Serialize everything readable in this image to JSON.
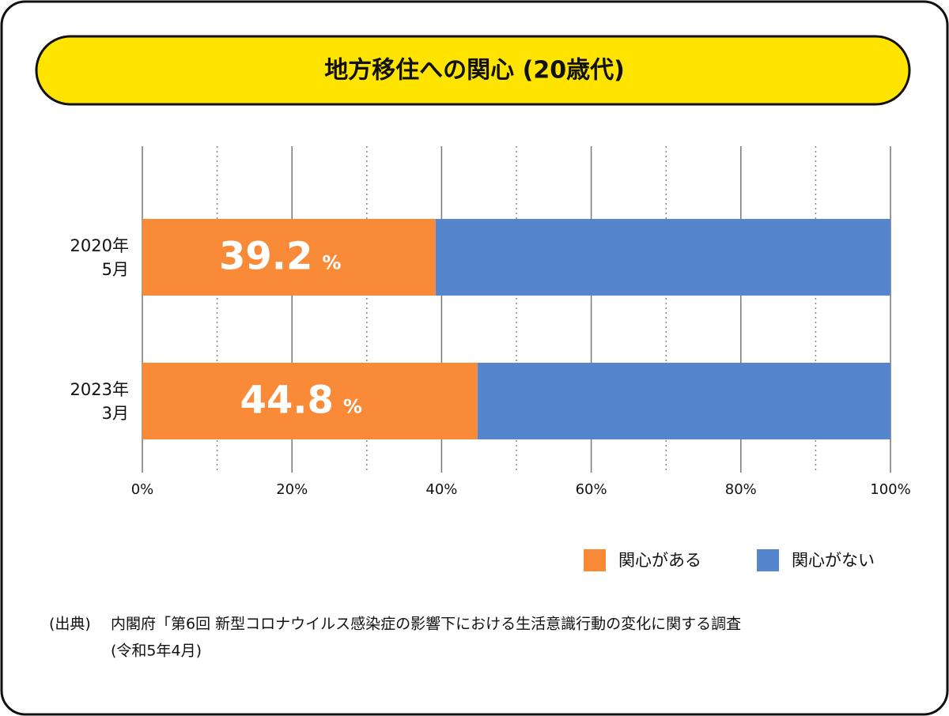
{
  "chart_data": {
    "type": "stacked-bar-horizontal",
    "title": "地方移住への関心 (20歳代)",
    "categories": [
      "2020年\n5月",
      "2023年\n3月"
    ],
    "series": [
      {
        "name": "関心がある",
        "color": "#f98a38",
        "values": [
          39.2,
          44.8
        ]
      },
      {
        "name": "関心がない",
        "color": "#5585cc",
        "values": [
          60.8,
          55.2
        ]
      }
    ],
    "value_label_unit": "%",
    "labeled_series": 0,
    "xlim": [
      0,
      100
    ],
    "xticks": [
      {
        "value": 0,
        "label": "0%"
      },
      {
        "value": 20,
        "label": "20%"
      },
      {
        "value": 40,
        "label": "40%"
      },
      {
        "value": 60,
        "label": "60%"
      },
      {
        "value": 80,
        "label": "80%"
      },
      {
        "value": 100,
        "label": "100%"
      }
    ],
    "minor_xticks": [
      10,
      30,
      50,
      70,
      90
    ],
    "grid": true,
    "legend": "bottom-right",
    "source_label": "(出典)",
    "source": [
      "内閣府「第6回 新型コロナウイルス感染症の影響下における生活意識行動の変化に関する調査",
      "(令和5年4月)"
    ]
  }
}
